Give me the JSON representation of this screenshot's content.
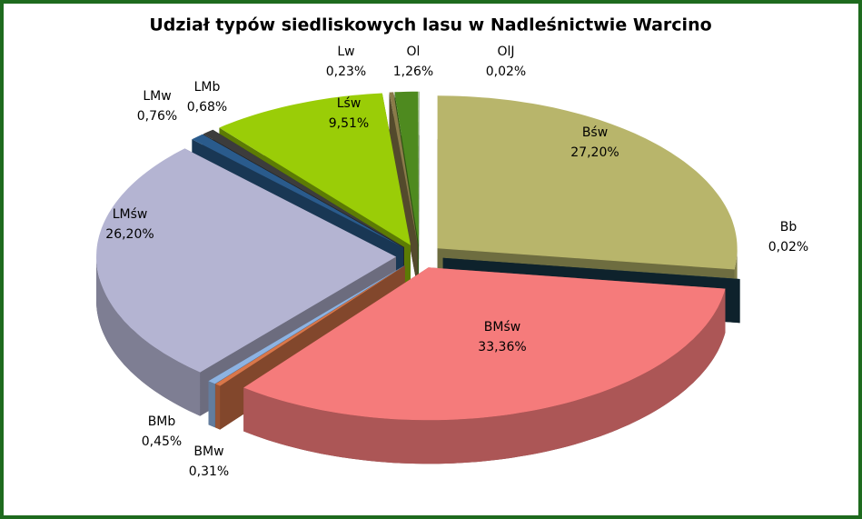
{
  "chart_data": {
    "type": "pie",
    "title": "Udział typów siedliskowych lasu w Nadleśnictwie Warcino",
    "categories": [
      "Bśw",
      "Bb",
      "BMśw",
      "BMw",
      "BMb",
      "LMśw",
      "LMw",
      "LMb",
      "Lśw",
      "Lw",
      "Ol",
      "OlJ"
    ],
    "values": [
      27.2,
      0.02,
      33.36,
      0.31,
      0.45,
      26.2,
      0.76,
      0.68,
      9.51,
      0.23,
      1.26,
      0.02
    ],
    "value_labels": [
      "27,20%",
      "0,02%",
      "33,36%",
      "0,31%",
      "0,45%",
      "26,20%",
      "0,76%",
      "0,68%",
      "9,51%",
      "0,23%",
      "1,26%",
      "0,02%"
    ],
    "colors": [
      "#b8b56b",
      "#17394a",
      "#f57b7b",
      "#d9774a",
      "#8db3e2",
      "#b4b4d2",
      "#2a5b8c",
      "#3c3c3c",
      "#9acd07",
      "#8a7b4a",
      "#4e8a1f",
      "#2e6419"
    ]
  }
}
